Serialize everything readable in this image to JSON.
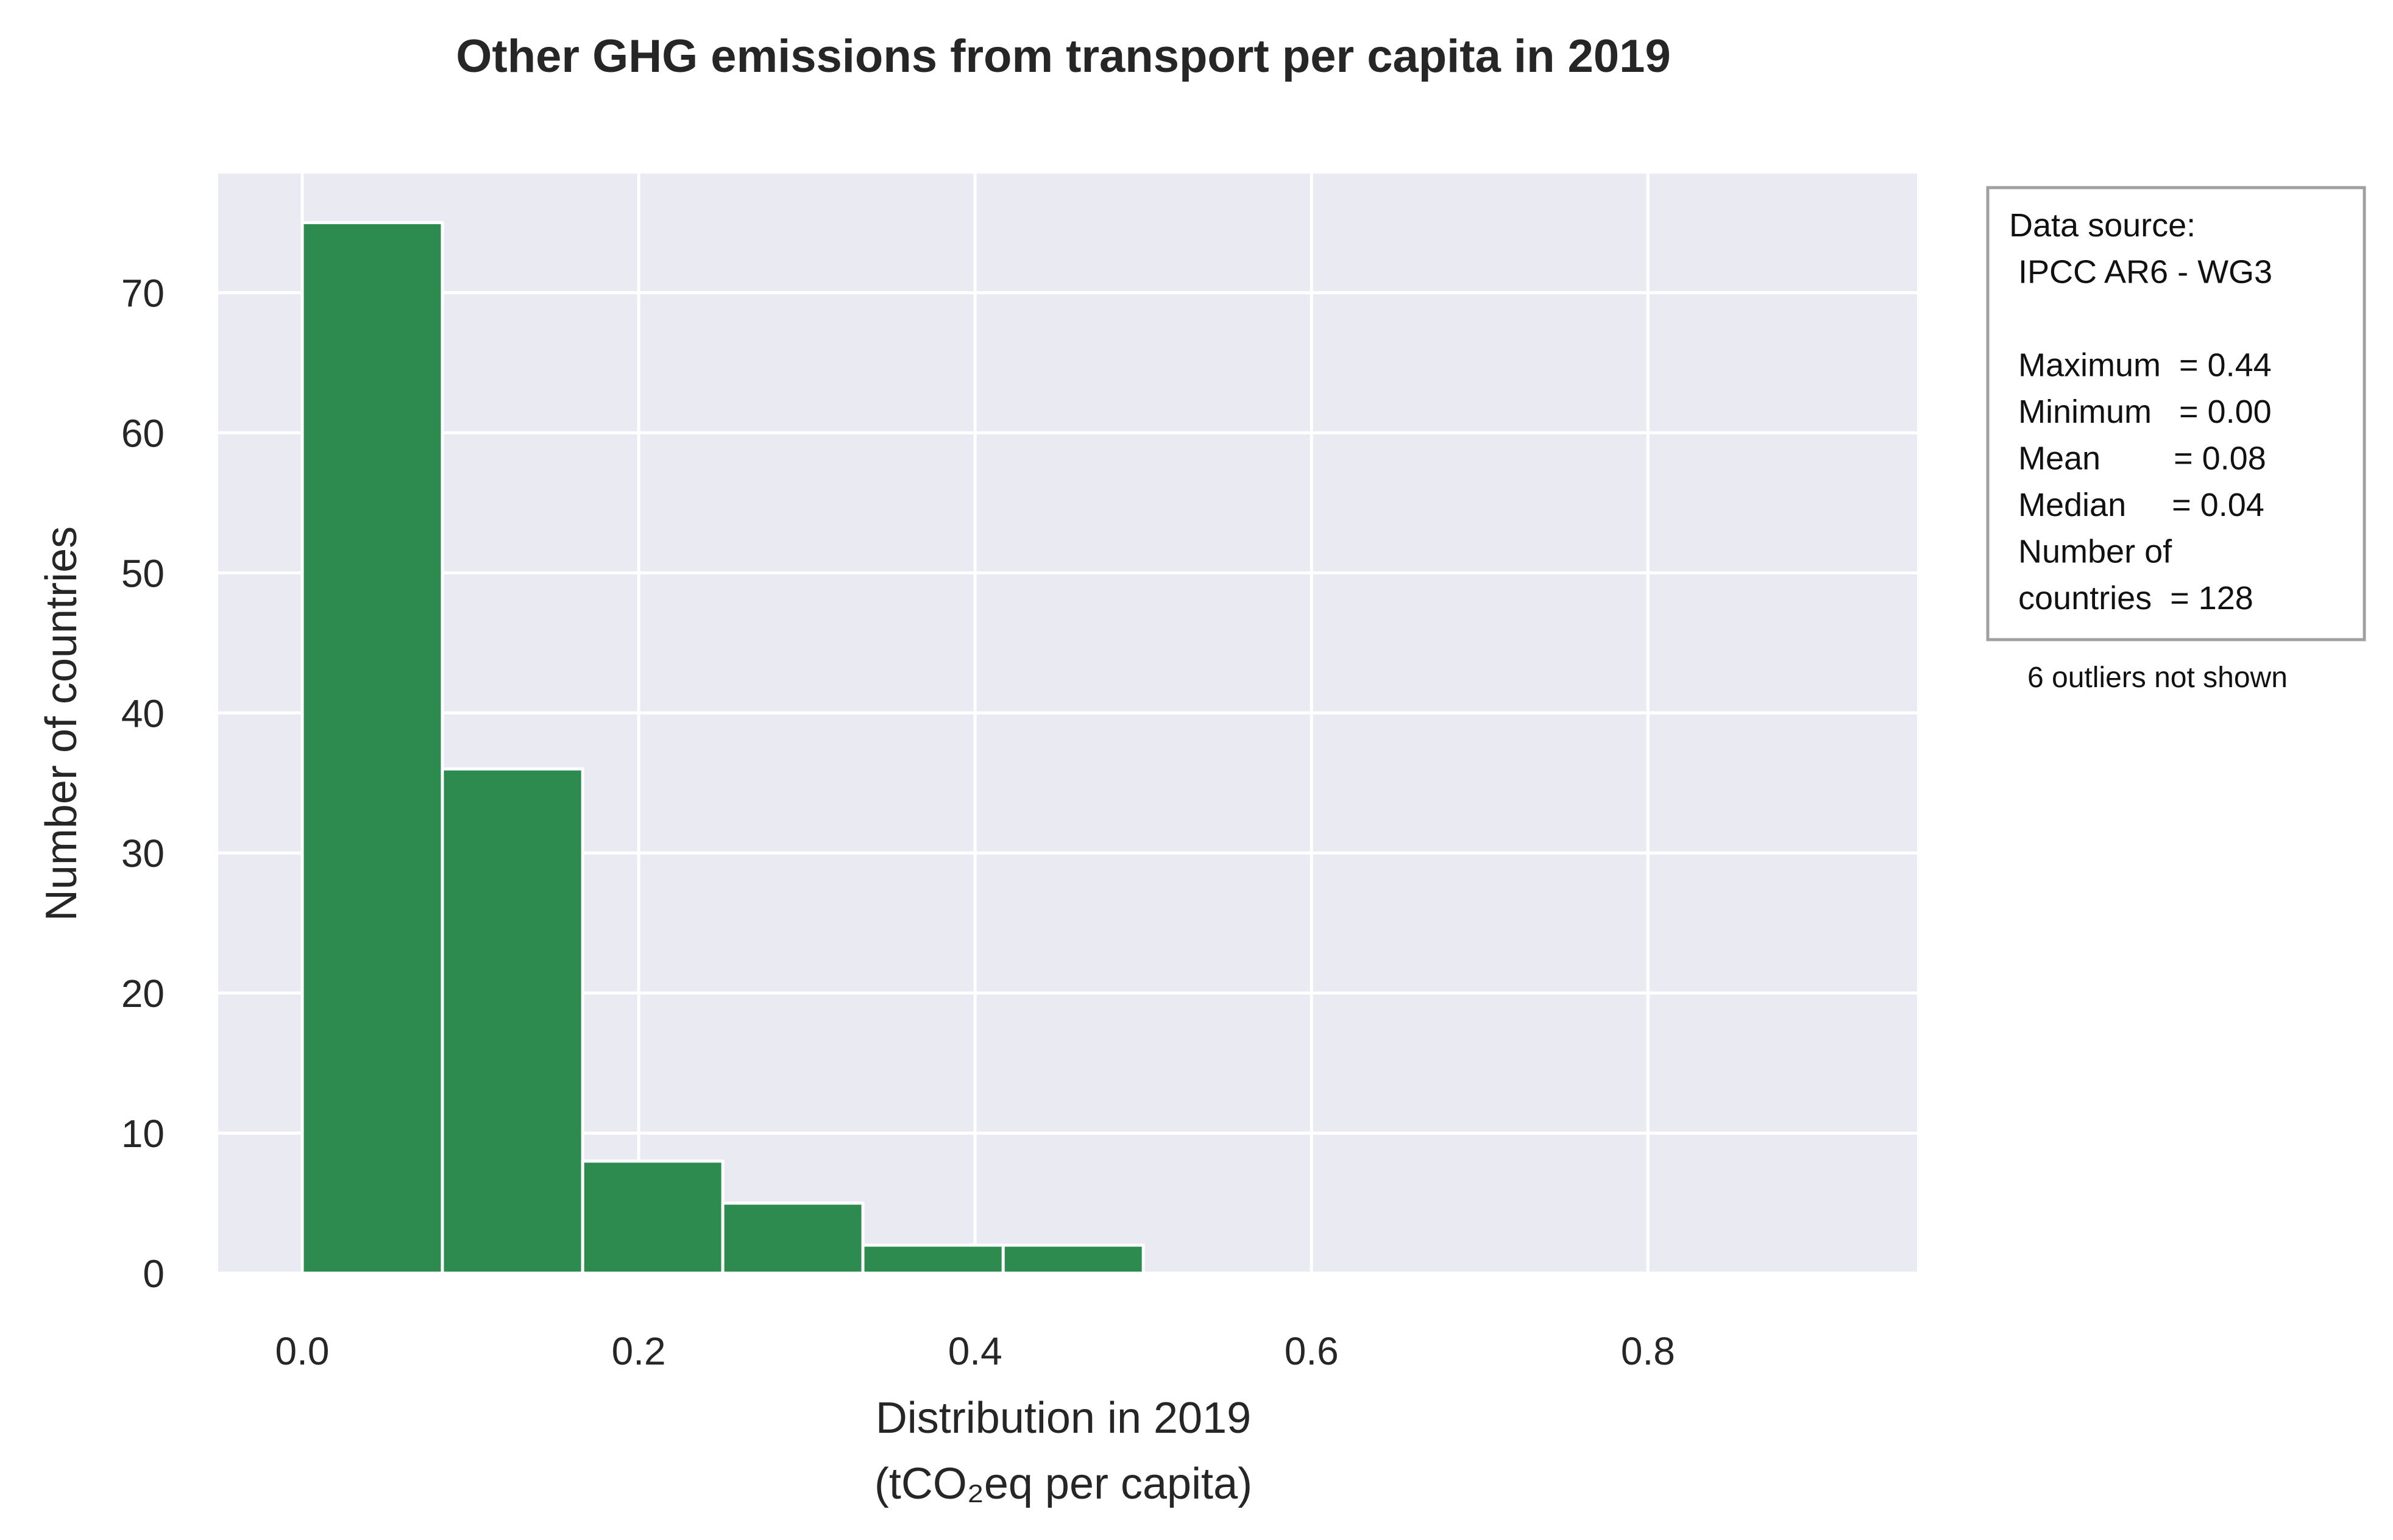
{
  "chart_data": {
    "type": "bar",
    "title": "Other GHG emissions from transport per capita in 2019",
    "xlabel_line1": "Distribution in 2019",
    "xlabel_line2": "(tCO₂eq per capita)",
    "ylabel": "Number of countries",
    "bin_edges": [
      0.0,
      0.0833,
      0.1667,
      0.25,
      0.3333,
      0.4167,
      0.5
    ],
    "values": [
      75,
      36,
      8,
      5,
      2,
      2
    ],
    "xlim": [
      -0.05,
      0.96
    ],
    "ylim": [
      0,
      78.5
    ],
    "xticks": [
      0.0,
      0.2,
      0.4,
      0.6,
      0.8
    ],
    "xtick_labels": [
      "0.0",
      "0.2",
      "0.4",
      "0.6",
      "0.8"
    ],
    "yticks": [
      0,
      10,
      20,
      30,
      40,
      50,
      60,
      70
    ],
    "ytick_labels": [
      "0",
      "10",
      "20",
      "30",
      "40",
      "50",
      "60",
      "70"
    ],
    "grid": true,
    "colors": {
      "bar": "#2e8b4f",
      "plot_bg": "#eaeaf2",
      "grid": "#ffffff",
      "box_border": "#a0a0a0"
    }
  },
  "info_box": {
    "lines": [
      "Data source:",
      " IPCC AR6 - WG3",
      "",
      " Maximum  = 0.44",
      " Minimum   = 0.00",
      " Mean        = 0.08",
      " Median     = 0.04",
      " Number of",
      " countries  = 128"
    ],
    "note": "6 outliers not shown"
  }
}
